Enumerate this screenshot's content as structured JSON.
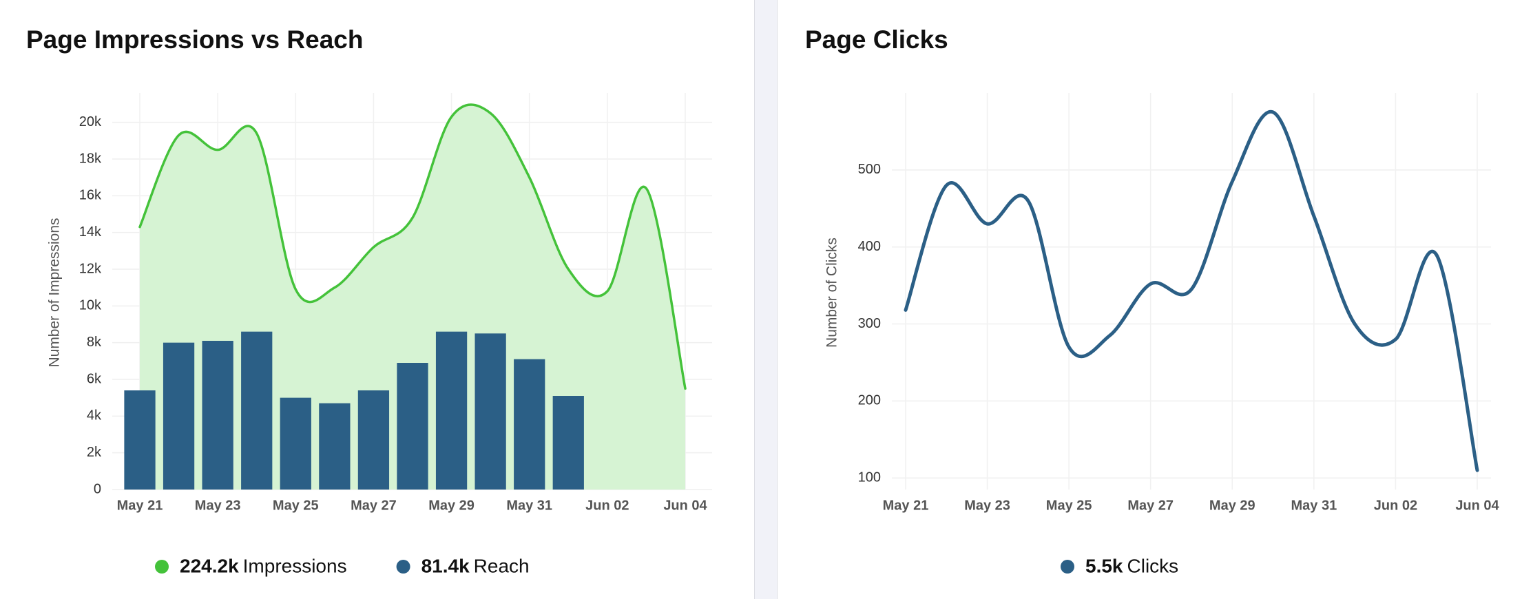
{
  "chart_data": [
    {
      "type": "combo",
      "title": "Page Impressions vs Reach",
      "y_label": "Number of Impressions",
      "categories": [
        "May 21",
        null,
        "May 23",
        null,
        "May 25",
        null,
        "May 27",
        null,
        "May 29",
        null,
        "May 31",
        null,
        "Jun 02",
        null,
        "Jun 04"
      ],
      "series": [
        {
          "name": "Impressions",
          "total": "224.2k",
          "type": "area",
          "color": "#44c23a",
          "fill": "#d6f3d3",
          "values": [
            14300,
            19300,
            18500,
            19400,
            10900,
            11000,
            13200,
            14800,
            20300,
            20500,
            17000,
            12000,
            10800,
            16400,
            5500
          ]
        },
        {
          "name": "Reach",
          "total": "81.4k",
          "type": "bar",
          "color": "#2b5f86",
          "values": [
            5400,
            8000,
            8100,
            8600,
            5000,
            4700,
            5400,
            6900,
            8600,
            8500,
            7100,
            5100,
            null,
            null,
            null
          ]
        }
      ],
      "ylim": [
        0,
        21600
      ],
      "yticks": [
        0,
        {
          "value": 2000,
          "label": "2k"
        },
        {
          "value": 4000,
          "label": "4k"
        },
        {
          "value": 6000,
          "label": "6k"
        },
        {
          "value": 8000,
          "label": "8k"
        },
        {
          "value": 10000,
          "label": "10k"
        },
        {
          "value": 12000,
          "label": "12k"
        },
        {
          "value": 14000,
          "label": "14k"
        },
        {
          "value": 16000,
          "label": "16k"
        },
        {
          "value": 18000,
          "label": "18k"
        },
        {
          "value": 20000,
          "label": "20k"
        }
      ],
      "grid": true
    },
    {
      "type": "line",
      "title": "Page Clicks",
      "y_label": "Number of Clicks",
      "categories": [
        "May 21",
        null,
        "May 23",
        null,
        "May 25",
        null,
        "May 27",
        null,
        "May 29",
        null,
        "May 31",
        null,
        "Jun 02",
        null,
        "Jun 04"
      ],
      "series": [
        {
          "name": "Clicks",
          "total": "5.5k",
          "type": "line",
          "color": "#2b5f86",
          "values": [
            318,
            480,
            430,
            460,
            270,
            285,
            352,
            345,
            485,
            575,
            440,
            300,
            280,
            390,
            110
          ]
        }
      ],
      "ylim": [
        85,
        600
      ],
      "yticks": [
        100,
        200,
        300,
        400,
        500
      ],
      "grid": true
    }
  ]
}
